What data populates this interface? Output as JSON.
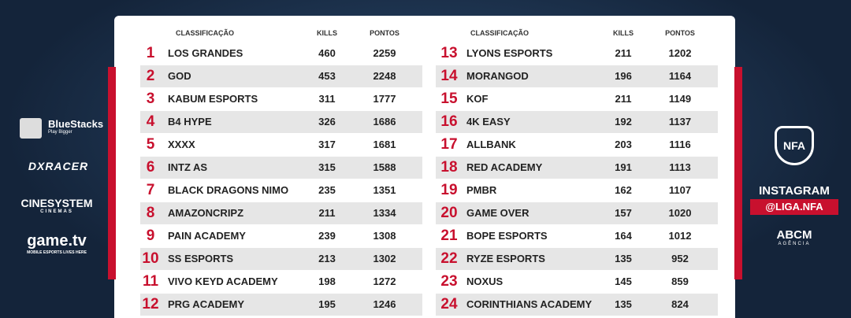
{
  "header": {
    "columns": [
      "CLASSIFICAÇÃO",
      "KILLS",
      "PONTOS"
    ]
  },
  "tables": [
    {
      "rows": [
        [
          1,
          "LOS GRANDES",
          460,
          2259
        ],
        [
          2,
          "GOD",
          453,
          2248
        ],
        [
          3,
          "KABUM ESPORTS",
          311,
          1777
        ],
        [
          4,
          "B4 HYPE",
          326,
          1686
        ],
        [
          5,
          "XXXX",
          317,
          1681
        ],
        [
          6,
          "INTZ AS",
          315,
          1588
        ],
        [
          7,
          "BLACK DRAGONS NIMO",
          235,
          1351
        ],
        [
          8,
          "AMAZONCRIPZ",
          211,
          1334
        ],
        [
          9,
          "PAIN ACADEMY",
          239,
          1308
        ],
        [
          10,
          "SS ESPORTS",
          213,
          1302
        ],
        [
          11,
          "VIVO KEYD ACADEMY",
          198,
          1272
        ],
        [
          12,
          "PRG ACADEMY",
          195,
          1246
        ]
      ]
    },
    {
      "rows": [
        [
          13,
          "LYONS ESPORTS",
          211,
          1202
        ],
        [
          14,
          "MORANGOD",
          196,
          1164
        ],
        [
          15,
          "KOF",
          211,
          1149
        ],
        [
          16,
          "4K EASY",
          192,
          1137
        ],
        [
          17,
          "ALLBANK",
          203,
          1116
        ],
        [
          18,
          "RED ACADEMY",
          191,
          1113
        ],
        [
          19,
          "PMBR",
          162,
          1107
        ],
        [
          20,
          "GAME OVER",
          157,
          1020
        ],
        [
          21,
          "BOPE ESPORTS",
          164,
          1012
        ],
        [
          22,
          "RYZE ESPORTS",
          135,
          952
        ],
        [
          23,
          "NOXUS",
          145,
          859
        ],
        [
          24,
          "CORINTHIANS ACADEMY",
          135,
          824
        ]
      ]
    }
  ],
  "sponsors": {
    "bluestacks": "BlueStacks",
    "bluestacks_tag": "Play Bigger",
    "dxracer": "DXRACER",
    "cinesystem": "CINESYSTEM",
    "cinesystem_tag": "CINEMAS",
    "gametv": "game.tv",
    "gametv_tag": "MOBILE ESPORTS LIVES HERE"
  },
  "right": {
    "logo": "NFA",
    "instagram": "INSTAGRAM",
    "handle": "@LIGA.NFA",
    "agency": "ABCM",
    "agency_tag": "AGÊNCIA"
  }
}
